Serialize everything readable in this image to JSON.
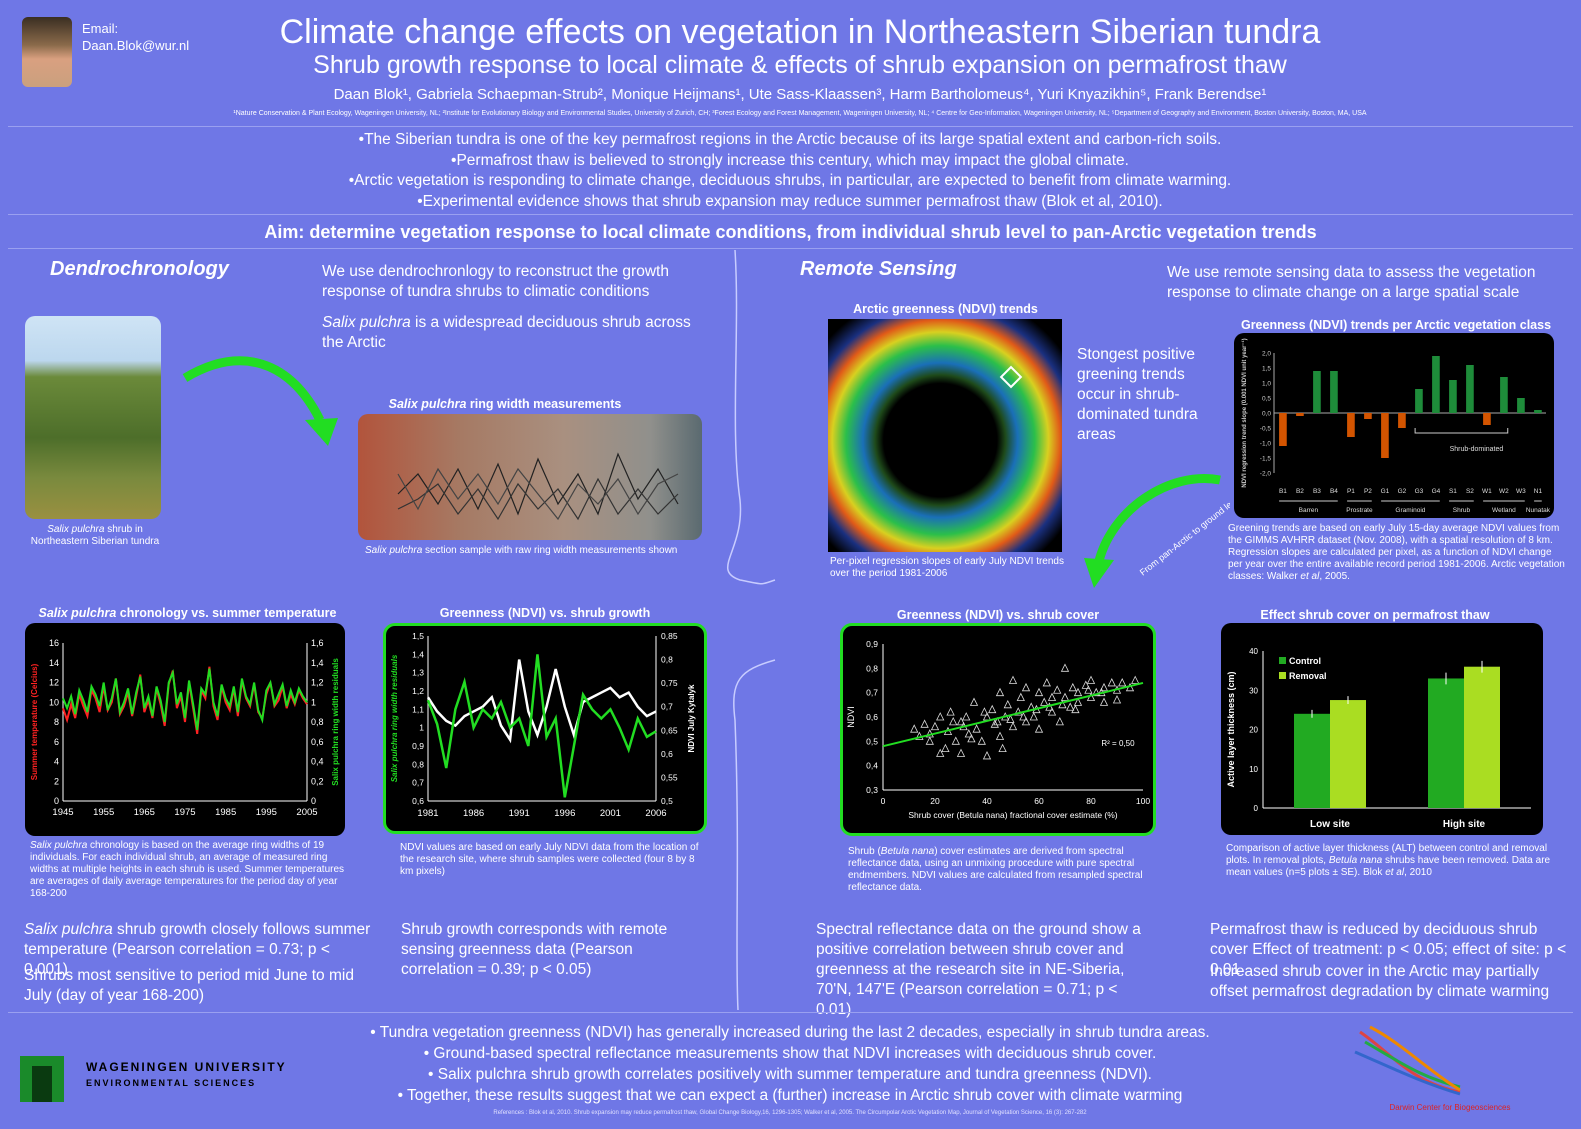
{
  "header": {
    "email_label": "Email:",
    "email": "Daan.Blok@wur.nl",
    "title": "Climate change effects on vegetation in Northeastern Siberian tundra",
    "subtitle": "Shrub growth response to local climate & effects of shrub expansion on permafrost thaw",
    "authors": "Daan Blok¹, Gabriela Schaepman-Strub², Monique Heijmans¹, Ute Sass-Klaassen³, Harm Bartholomeus⁴, Yuri Knyazikhin⁵, Frank Berendse¹",
    "affiliations": "¹Nature Conservation & Plant Ecology, Wageningen University, NL; ²Institute for Evolutionary Biology and Environmental Studies, University of Zurich, CH; ³Forest Ecology and Forest Management, Wageningen University, NL; ⁴ Centre for Geo-Information, Wageningen University, NL; ⁵Department of Geography and Environment, Boston University, Boston, MA, USA"
  },
  "intro": [
    "•The Siberian tundra is one of the key permafrost regions in the Arctic because of its large spatial extent and carbon-rich soils.",
    "•Permafrost thaw is believed to strongly increase this century, which may impact the global climate.",
    "•Arctic vegetation is responding to climate change, deciduous shrubs, in particular, are expected to benefit from climate warming.",
    "•Experimental evidence shows that shrub expansion may reduce summer permafrost thaw (Blok et al, 2010)."
  ],
  "aim": "Aim: determine vegetation response to local climate conditions, from individual shrub level to pan-Arctic vegetation trends",
  "dendro": {
    "heading": "Dendrochronology",
    "text1": "We use dendrochronlogy to reconstruct the growth response of tundra shrubs to climatic conditions",
    "text2_italic": "Salix pulchra",
    "text2_rest": " is a widespread deciduous shrub across the Arctic",
    "photo_caption_italic": "Salix pulchra",
    "photo_caption_rest": " shrub in Northeastern Siberian tundra",
    "ring_title_italic": "Salix pulchra",
    "ring_title_rest": " ring width measurements",
    "ring_caption_italic": "Salix pulchra",
    "ring_caption_rest": " section sample with raw ring width measurements shown",
    "chrono_title_italic": "Salix pulchra",
    "chrono_title_rest": " chronology vs. summer temperature",
    "chrono_caption_italic": "Salix pulchra",
    "chrono_caption_rest": " chronology is based on the average ring widths of 19 individuals. For each individual shrub, an average of measured ring widths at multiple heights in each shrub is used. Summer temperatures are averages of daily average temperatures for the period day of year 168-200",
    "ndvi_title": "Greenness (NDVI) vs. shrub growth",
    "ndvi_caption": "NDVI values are based on early July NDVI data from the location of the research site, where shrub samples were collected (four 8 by 8 km pixels)",
    "concl1_italic": "Salix pulchra",
    "concl1_rest": " shrub growth closely follows summer temperature (Pearson correlation = 0.73; p < 0.001)",
    "concl2": "Shrubs most sensitive to period mid June to mid July (day of year 168-200)",
    "concl3": "Shrub growth corresponds with  remote sensing greenness data (Pearson correlation = 0.39; p < 0.05)"
  },
  "remote": {
    "heading": "Remote Sensing",
    "text1": "We use remote sensing data to assess the vegetation response to climate change on a large spatial scale",
    "map_title": "Arctic greenness (NDVI) trends",
    "map_note": "Stongest positive greening trends occur in shrub-dominated tundra areas",
    "map_caption": "Per-pixel regression slopes of early July NDVI trends over  the period 1981-2006",
    "arrow_label": "From pan-Arctic to ground level at research site",
    "bar_title": "Greenness (NDVI) trends per Arctic vegetation class",
    "bar_caption_a": "Greening trends are based on early July 15-day average NDVI values from the GIMMS AVHRR dataset (Nov. 2008), with a spatial resolution of 8 km. Regression slopes are calculated per pixel, as a function of NDVI change per year over the entire available record period 1981-2006. Arctic vegetation classes: Walker ",
    "bar_caption_b": "et al",
    "bar_caption_c": ", 2005.",
    "scatter_title": "Greenness (NDVI) vs. shrub cover",
    "scatter_caption_a": "Shrub (",
    "scatter_caption_b": "Betula nana",
    "scatter_caption_c": ") cover estimates are derived  from spectral reflectance data, using an unmixing procedure with pure spectral endmembers. NDVI values are calculated from resampled spectral reflectance data.",
    "alt_title": "Effect shrub cover on permafrost thaw",
    "alt_caption_a": "Comparison of active layer thickness  (ALT) between control and removal plots. In removal plots, ",
    "alt_caption_b": "Betula nana",
    "alt_caption_c": " shrubs have been removed. Data are mean values (n=5 plots ± SE). Blok ",
    "alt_caption_d": "et al",
    "alt_caption_e": ", 2010",
    "concl1": "Spectral reflectance data on the ground show a positive correlation between shrub cover and greenness at the research site in NE-Siberia, 70'N, 147'E (Pearson correlation = 0.71; p < 0.01)",
    "concl2": "Permafrost thaw is reduced by deciduous shrub cover Effect of treatment: p < 0.05; effect of site: p < 0.01",
    "concl3": "Increased shrub cover in the Arctic may partially offset permafrost degradation by climate warming"
  },
  "bottom": [
    "• Tundra vegetation greenness (NDVI) has generally increased during the last 2 decades, especially in shrub tundra areas.",
    "• Ground-based spectral reflectance measurements show that NDVI increases with deciduous shrub cover.",
    "• Salix pulchra shrub growth correlates positively with summer temperature and tundra greenness (NDVI).",
    "• Together, these results suggest that we can expect a (further) increase in Arctic shrub cover with climate warming"
  ],
  "logo": {
    "university_line1": "WAGENINGEN UNIVERSITY",
    "university_line2": "ENVIRONMENTAL SCIENCES",
    "darwin_text": "Darwin Center for Biogeosciences"
  },
  "references": "References : Blok et al, 2010. Shrub expansion may reduce permafrost thaw, Global Change Biology,16, 1296-1305; Walker et al, 2005. The Circumpolar Arctic Vegetation Map, Journal of Vegetation Science, 16 (3): 267-282",
  "colors": {
    "background": "#6f77e6",
    "green": "#22dd22",
    "red": "#ff2222",
    "orange": "#d35400",
    "bar_green": "#1e8c3a"
  },
  "chart_data": [
    {
      "type": "line",
      "title": "Salix pulchra chronology vs. summer temperature",
      "ylabel": "Summer temperature (Celcius)",
      "y2label": "Salix pulchra ring width residuals",
      "x_ticks": [
        "1945",
        "1955",
        "1965",
        "1975",
        "1985",
        "1995",
        "2005"
      ],
      "y_ticks": [
        "0",
        "2",
        "4",
        "6",
        "8",
        "10",
        "12",
        "14",
        "16"
      ],
      "y2_ticks": [
        "0",
        "0,2",
        "0,4",
        "0,6",
        "0,8",
        "1",
        "1,2",
        "1,4",
        "1,6"
      ],
      "xlim": [
        1945,
        2005
      ],
      "ylim": [
        0,
        16
      ],
      "y2lim": [
        0,
        1.6
      ],
      "series": [
        {
          "color": "#ff2222",
          "values": [
            9.4,
            8.2,
            9.8,
            8.4,
            10.8,
            9.6,
            8.6,
            11.2,
            10.4,
            9.0,
            11.6,
            9.2,
            10.0,
            12.4,
            8.8,
            9.6,
            11.0,
            8.6,
            10.6,
            12.8,
            9.0,
            10.2,
            8.4,
            11.4,
            9.8,
            7.6,
            11.8,
            13.2,
            9.4,
            10.6,
            8.0,
            12.0,
            9.4,
            6.8,
            11.2,
            10.4,
            13.6,
            9.6,
            8.2,
            11.6,
            10.0,
            9.2,
            11.4,
            8.6,
            12.2,
            10.4,
            9.6,
            11.8,
            9.0,
            8.4,
            10.8,
            12.0,
            9.6,
            10.2,
            11.6,
            9.4,
            10.8,
            9.8,
            11.2,
            10.4,
            9.8
          ]
        },
        {
          "color": "#22dd22",
          "values": [
            1.04,
            0.94,
            1.06,
            0.88,
            1.12,
            1.02,
            0.9,
            1.16,
            1.08,
            0.96,
            1.2,
            0.92,
            1.04,
            1.24,
            0.9,
            1.0,
            1.14,
            0.88,
            1.1,
            1.26,
            0.94,
            1.06,
            0.86,
            1.16,
            1.02,
            0.8,
            1.2,
            1.3,
            0.98,
            1.1,
            0.84,
            1.22,
            0.98,
            0.72,
            1.14,
            1.08,
            1.34,
            1.0,
            0.86,
            1.18,
            1.04,
            0.96,
            1.16,
            0.9,
            1.24,
            1.06,
            0.98,
            1.2,
            0.92,
            0.82,
            1.12,
            1.2,
            0.98,
            1.08,
            1.18,
            0.96,
            1.12,
            1.0,
            1.14,
            1.06,
            1.0
          ]
        }
      ]
    },
    {
      "type": "line",
      "title": "Greenness (NDVI) vs. shrub growth",
      "ylabel": "Salix pulchra ring width residuals",
      "y2label": "NDVI July Kytalyk",
      "x_ticks": [
        "1981",
        "1986",
        "1991",
        "1996",
        "2001",
        "2006"
      ],
      "y_ticks": [
        "0,6",
        "0,7",
        "0,8",
        "0,9",
        "1",
        "1,1",
        "1,2",
        "1,3",
        "1,4",
        "1,5"
      ],
      "y2_ticks": [
        "0,5",
        "0,55",
        "0,6",
        "0,65",
        "0,7",
        "0,75",
        "0,8",
        "0,85"
      ],
      "xlim": [
        1981,
        2006
      ],
      "ylim": [
        0.6,
        1.5
      ],
      "y2lim": [
        0.5,
        0.85
      ],
      "series": [
        {
          "color": "#ffffff",
          "name": "NDVI",
          "values": [
            0.72,
            0.69,
            0.67,
            0.66,
            0.68,
            0.69,
            0.7,
            0.72,
            0.66,
            0.63,
            0.8,
            0.69,
            0.64,
            0.7,
            0.78,
            0.7,
            0.64,
            0.71,
            0.72,
            0.73,
            0.74,
            0.72,
            0.73,
            0.7,
            0.68,
            0.69
          ]
        },
        {
          "color": "#22dd22",
          "name": "ring width",
          "values": [
            1.15,
            1.02,
            0.78,
            1.1,
            1.25,
            1.0,
            1.1,
            1.05,
            1.14,
            1.0,
            1.05,
            0.9,
            1.4,
            0.95,
            1.05,
            0.62,
            0.9,
            1.18,
            1.1,
            1.05,
            1.1,
            1.0,
            0.88,
            1.05,
            0.95,
            0.98
          ]
        }
      ]
    },
    {
      "type": "bar",
      "title": "Greenness (NDVI) trends per Arctic vegetation class",
      "ylabel": "NDVI regression trend slope (0.001 NDVI unit year⁻¹)",
      "categories": [
        "B1",
        "B2",
        "B3",
        "B4",
        "P1",
        "P2",
        "G1",
        "G2",
        "G3",
        "G4",
        "S1",
        "S2",
        "W1",
        "W2",
        "W3",
        "N1"
      ],
      "group_labels": [
        "Barren",
        "Prostrate",
        "Graminoid",
        "Shrub",
        "Wetland",
        "Nunatak"
      ],
      "annotation": "Shrub-dominated",
      "y_ticks": [
        "-2,0",
        "-1,5",
        "-1,0",
        "-0,5",
        "0,0",
        "0,5",
        "1,0",
        "1,5",
        "2,0"
      ],
      "ylim": [
        -2,
        2
      ],
      "values": [
        -1.1,
        -0.1,
        1.4,
        1.4,
        -0.8,
        -0.2,
        -1.5,
        -0.5,
        0.8,
        1.9,
        1.1,
        1.6,
        -0.4,
        1.2,
        0.5,
        0.1
      ]
    },
    {
      "type": "scatter",
      "title": "Greenness (NDVI) vs. shrub cover",
      "xlabel": "Shrub cover (Betula nana) fractional cover estimate (%)",
      "ylabel": "NDVI",
      "x_ticks": [
        "0",
        "20",
        "40",
        "60",
        "80",
        "100"
      ],
      "y_ticks": [
        "0,3",
        "0,4",
        "0,5",
        "0,6",
        "0,7",
        "0,8",
        "0,9"
      ],
      "xlim": [
        0,
        100
      ],
      "ylim": [
        0.3,
        0.9
      ],
      "annotation": "R² = 0,50",
      "trend": {
        "x": [
          0,
          100
        ],
        "y": [
          0.48,
          0.74
        ]
      },
      "points": [
        [
          12,
          0.55
        ],
        [
          14,
          0.52
        ],
        [
          16,
          0.57
        ],
        [
          18,
          0.5
        ],
        [
          20,
          0.56
        ],
        [
          22,
          0.6
        ],
        [
          24,
          0.47
        ],
        [
          25,
          0.54
        ],
        [
          26,
          0.62
        ],
        [
          28,
          0.5
        ],
        [
          30,
          0.58
        ],
        [
          30,
          0.45
        ],
        [
          32,
          0.6
        ],
        [
          33,
          0.53
        ],
        [
          35,
          0.66
        ],
        [
          36,
          0.55
        ],
        [
          38,
          0.5
        ],
        [
          40,
          0.6
        ],
        [
          40,
          0.44
        ],
        [
          42,
          0.63
        ],
        [
          43,
          0.57
        ],
        [
          45,
          0.7
        ],
        [
          45,
          0.52
        ],
        [
          47,
          0.6
        ],
        [
          48,
          0.65
        ],
        [
          50,
          0.56
        ],
        [
          50,
          0.75
        ],
        [
          52,
          0.62
        ],
        [
          53,
          0.68
        ],
        [
          55,
          0.58
        ],
        [
          55,
          0.72
        ],
        [
          57,
          0.64
        ],
        [
          58,
          0.6
        ],
        [
          60,
          0.7
        ],
        [
          60,
          0.55
        ],
        [
          62,
          0.66
        ],
        [
          63,
          0.74
        ],
        [
          65,
          0.62
        ],
        [
          65,
          0.68
        ],
        [
          67,
          0.71
        ],
        [
          68,
          0.58
        ],
        [
          70,
          0.68
        ],
        [
          70,
          0.8
        ],
        [
          72,
          0.64
        ],
        [
          73,
          0.72
        ],
        [
          75,
          0.7
        ],
        [
          75,
          0.66
        ],
        [
          78,
          0.73
        ],
        [
          80,
          0.68
        ],
        [
          80,
          0.75
        ],
        [
          82,
          0.7
        ],
        [
          85,
          0.72
        ],
        [
          85,
          0.66
        ],
        [
          88,
          0.74
        ],
        [
          90,
          0.71
        ],
        [
          90,
          0.67
        ],
        [
          92,
          0.74
        ],
        [
          95,
          0.72
        ],
        [
          97,
          0.75
        ],
        [
          18,
          0.53
        ],
        [
          27,
          0.58
        ],
        [
          34,
          0.51
        ],
        [
          44,
          0.58
        ],
        [
          54,
          0.6
        ],
        [
          64,
          0.64
        ],
        [
          74,
          0.63
        ],
        [
          84,
          0.7
        ],
        [
          39,
          0.62
        ],
        [
          49,
          0.59
        ],
        [
          59,
          0.63
        ],
        [
          69,
          0.65
        ],
        [
          79,
          0.71
        ],
        [
          22,
          0.45
        ],
        [
          31,
          0.56
        ],
        [
          46,
          0.47
        ]
      ]
    },
    {
      "type": "bar",
      "title": "Effect shrub cover on permafrost thaw",
      "ylabel": "Active layer thickness (cm)",
      "categories": [
        "Low site",
        "High site"
      ],
      "y_ticks": [
        "0",
        "10",
        "20",
        "30",
        "40"
      ],
      "ylim": [
        0,
        40
      ],
      "series": [
        {
          "name": "Control",
          "color": "#22aa22",
          "values": [
            24,
            33
          ],
          "err": [
            1,
            1.5
          ]
        },
        {
          "name": "Removal",
          "color": "#aadd22",
          "values": [
            27.5,
            36
          ],
          "err": [
            1,
            1.5
          ]
        }
      ]
    }
  ]
}
